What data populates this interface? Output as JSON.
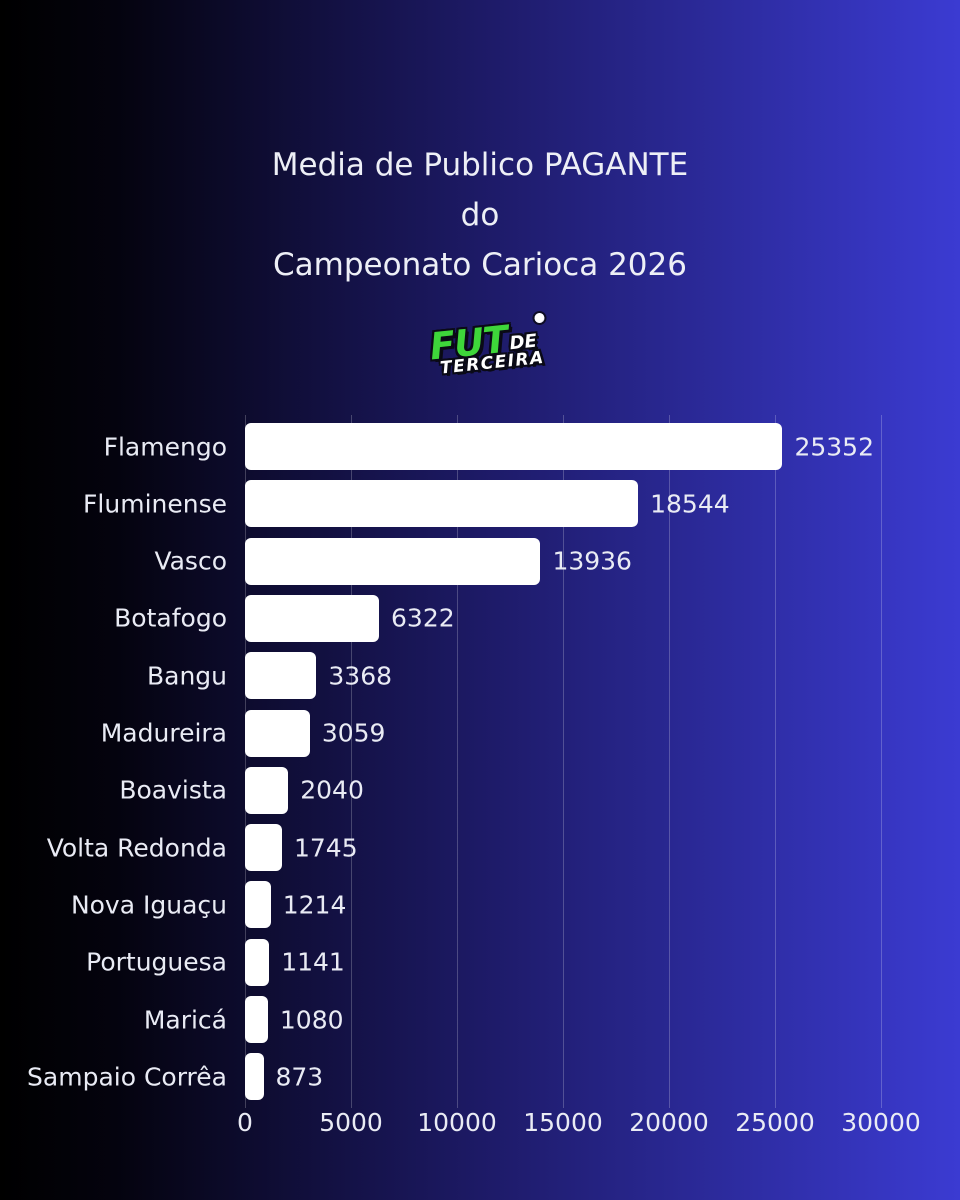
{
  "title": {
    "lines": [
      "Media de Publico PAGANTE",
      "do",
      "Campeonato Carioca 2026"
    ]
  },
  "logo": {
    "word_top": "FUT",
    "word_mid": "DE",
    "word_bottom": "TERCEIRA",
    "ball_icon": "soccer-ball",
    "green": "#3ed63a"
  },
  "colors": {
    "background_left": "#000000",
    "background_right": "#3b3bd2",
    "bar_fill": "#ffffff",
    "text": "#e9ebf4",
    "gridline": "rgba(255,255,255,0.22)"
  },
  "chart_data": {
    "type": "bar",
    "orientation": "horizontal",
    "title": "Media de Publico PAGANTE do Campeonato Carioca 2026",
    "categories": [
      "Flamengo",
      "Fluminense",
      "Vasco",
      "Botafogo",
      "Bangu",
      "Madureira",
      "Boavista",
      "Volta Redonda",
      "Nova Iguaçu",
      "Portuguesa",
      "Maricá",
      "Sampaio Corrêa"
    ],
    "values": [
      25352,
      18544,
      13936,
      6322,
      3368,
      3059,
      2040,
      1745,
      1214,
      1141,
      1080,
      873
    ],
    "value_labels": true,
    "xlabel": "",
    "ylabel": "",
    "xlim": [
      0,
      30000
    ],
    "x_ticks": [
      0,
      5000,
      10000,
      15000,
      20000,
      25000,
      30000
    ],
    "grid": "vertical",
    "legend": "none"
  }
}
